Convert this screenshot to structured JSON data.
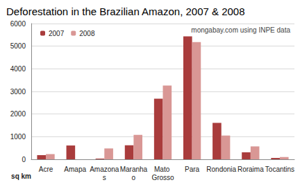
{
  "chart_data": {
    "type": "bar",
    "title": "Deforestation in the Brazilian Amazon, 2007 & 2008",
    "annotation": "mongabay.com using INPE data",
    "ylabel": "sq km",
    "categories": [
      "Acre",
      "Amapa",
      "Amazonas",
      "Maranhao",
      "Mato Grosso",
      "Para",
      "Rondonia",
      "Roraima",
      "Tocantins"
    ],
    "series": [
      {
        "name": "2007",
        "color": "#a93c3c",
        "values": [
          184,
          610,
          30,
          620,
          2680,
          5430,
          1610,
          310,
          60
        ]
      },
      {
        "name": "2008",
        "color": "#d99795",
        "values": [
          230,
          0,
          480,
          1080,
          3260,
          5180,
          1050,
          570,
          100
        ]
      }
    ],
    "ylim": [
      0,
      6000
    ],
    "yticks": [
      0,
      1000,
      2000,
      3000,
      4000,
      5000,
      6000
    ],
    "grid": true,
    "legend": "top-left"
  }
}
